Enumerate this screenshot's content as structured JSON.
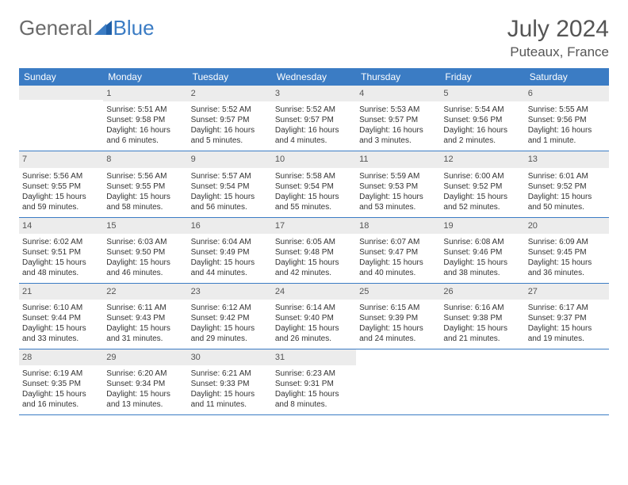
{
  "brand": {
    "part1": "General",
    "part2": "Blue"
  },
  "title": {
    "month": "July 2024",
    "location": "Puteaux, France"
  },
  "day_headers": [
    "Sunday",
    "Monday",
    "Tuesday",
    "Wednesday",
    "Thursday",
    "Friday",
    "Saturday"
  ],
  "colors": {
    "header_bg": "#3b7cc4",
    "header_text": "#ffffff",
    "daynum_bg": "#ececec",
    "daynum_text": "#555555",
    "body_text": "#333333"
  },
  "weeks": [
    [
      {
        "blank": true
      },
      {
        "day": "1",
        "sunrise": "5:51 AM",
        "sunset": "9:58 PM",
        "daylight": "16 hours and 6 minutes."
      },
      {
        "day": "2",
        "sunrise": "5:52 AM",
        "sunset": "9:57 PM",
        "daylight": "16 hours and 5 minutes."
      },
      {
        "day": "3",
        "sunrise": "5:52 AM",
        "sunset": "9:57 PM",
        "daylight": "16 hours and 4 minutes."
      },
      {
        "day": "4",
        "sunrise": "5:53 AM",
        "sunset": "9:57 PM",
        "daylight": "16 hours and 3 minutes."
      },
      {
        "day": "5",
        "sunrise": "5:54 AM",
        "sunset": "9:56 PM",
        "daylight": "16 hours and 2 minutes."
      },
      {
        "day": "6",
        "sunrise": "5:55 AM",
        "sunset": "9:56 PM",
        "daylight": "16 hours and 1 minute."
      }
    ],
    [
      {
        "day": "7",
        "sunrise": "5:56 AM",
        "sunset": "9:55 PM",
        "daylight": "15 hours and 59 minutes."
      },
      {
        "day": "8",
        "sunrise": "5:56 AM",
        "sunset": "9:55 PM",
        "daylight": "15 hours and 58 minutes."
      },
      {
        "day": "9",
        "sunrise": "5:57 AM",
        "sunset": "9:54 PM",
        "daylight": "15 hours and 56 minutes."
      },
      {
        "day": "10",
        "sunrise": "5:58 AM",
        "sunset": "9:54 PM",
        "daylight": "15 hours and 55 minutes."
      },
      {
        "day": "11",
        "sunrise": "5:59 AM",
        "sunset": "9:53 PM",
        "daylight": "15 hours and 53 minutes."
      },
      {
        "day": "12",
        "sunrise": "6:00 AM",
        "sunset": "9:52 PM",
        "daylight": "15 hours and 52 minutes."
      },
      {
        "day": "13",
        "sunrise": "6:01 AM",
        "sunset": "9:52 PM",
        "daylight": "15 hours and 50 minutes."
      }
    ],
    [
      {
        "day": "14",
        "sunrise": "6:02 AM",
        "sunset": "9:51 PM",
        "daylight": "15 hours and 48 minutes."
      },
      {
        "day": "15",
        "sunrise": "6:03 AM",
        "sunset": "9:50 PM",
        "daylight": "15 hours and 46 minutes."
      },
      {
        "day": "16",
        "sunrise": "6:04 AM",
        "sunset": "9:49 PM",
        "daylight": "15 hours and 44 minutes."
      },
      {
        "day": "17",
        "sunrise": "6:05 AM",
        "sunset": "9:48 PM",
        "daylight": "15 hours and 42 minutes."
      },
      {
        "day": "18",
        "sunrise": "6:07 AM",
        "sunset": "9:47 PM",
        "daylight": "15 hours and 40 minutes."
      },
      {
        "day": "19",
        "sunrise": "6:08 AM",
        "sunset": "9:46 PM",
        "daylight": "15 hours and 38 minutes."
      },
      {
        "day": "20",
        "sunrise": "6:09 AM",
        "sunset": "9:45 PM",
        "daylight": "15 hours and 36 minutes."
      }
    ],
    [
      {
        "day": "21",
        "sunrise": "6:10 AM",
        "sunset": "9:44 PM",
        "daylight": "15 hours and 33 minutes."
      },
      {
        "day": "22",
        "sunrise": "6:11 AM",
        "sunset": "9:43 PM",
        "daylight": "15 hours and 31 minutes."
      },
      {
        "day": "23",
        "sunrise": "6:12 AM",
        "sunset": "9:42 PM",
        "daylight": "15 hours and 29 minutes."
      },
      {
        "day": "24",
        "sunrise": "6:14 AM",
        "sunset": "9:40 PM",
        "daylight": "15 hours and 26 minutes."
      },
      {
        "day": "25",
        "sunrise": "6:15 AM",
        "sunset": "9:39 PM",
        "daylight": "15 hours and 24 minutes."
      },
      {
        "day": "26",
        "sunrise": "6:16 AM",
        "sunset": "9:38 PM",
        "daylight": "15 hours and 21 minutes."
      },
      {
        "day": "27",
        "sunrise": "6:17 AM",
        "sunset": "9:37 PM",
        "daylight": "15 hours and 19 minutes."
      }
    ],
    [
      {
        "day": "28",
        "sunrise": "6:19 AM",
        "sunset": "9:35 PM",
        "daylight": "15 hours and 16 minutes."
      },
      {
        "day": "29",
        "sunrise": "6:20 AM",
        "sunset": "9:34 PM",
        "daylight": "15 hours and 13 minutes."
      },
      {
        "day": "30",
        "sunrise": "6:21 AM",
        "sunset": "9:33 PM",
        "daylight": "15 hours and 11 minutes."
      },
      {
        "day": "31",
        "sunrise": "6:23 AM",
        "sunset": "9:31 PM",
        "daylight": "15 hours and 8 minutes."
      },
      {
        "blank": true,
        "show_bg": false
      },
      {
        "blank": true,
        "show_bg": false
      },
      {
        "blank": true,
        "show_bg": false
      }
    ]
  ]
}
